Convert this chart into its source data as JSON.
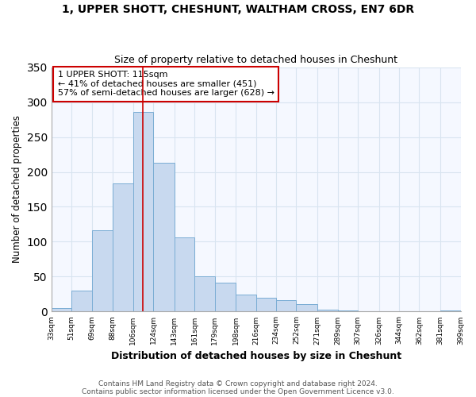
{
  "title": "1, UPPER SHOTT, CHESHUNT, WALTHAM CROSS, EN7 6DR",
  "subtitle": "Size of property relative to detached houses in Cheshunt",
  "xlabel": "Distribution of detached houses by size in Cheshunt",
  "ylabel": "Number of detached properties",
  "bar_color": "#c8d9ef",
  "bar_edge_color": "#7aadd4",
  "background_color": "#ffffff",
  "plot_bg_color": "#f5f8ff",
  "grid_color": "#d8e4f0",
  "vline_x": 115,
  "vline_color": "#cc0000",
  "annotation_title": "1 UPPER SHOTT: 115sqm",
  "annotation_line1": "← 41% of detached houses are smaller (451)",
  "annotation_line2": "57% of semi-detached houses are larger (628) →",
  "bin_edges": [
    33,
    51,
    69,
    88,
    106,
    124,
    143,
    161,
    179,
    198,
    216,
    234,
    252,
    271,
    289,
    307,
    326,
    344,
    362,
    381,
    399
  ],
  "bin_heights": [
    5,
    30,
    116,
    183,
    286,
    213,
    106,
    51,
    41,
    24,
    20,
    16,
    11,
    3,
    2,
    1,
    0,
    0,
    0,
    2
  ],
  "xlim_left": 33,
  "xlim_right": 399,
  "ylim_top": 350,
  "yticks": [
    0,
    50,
    100,
    150,
    200,
    250,
    300,
    350
  ],
  "tick_labels": [
    "33sqm",
    "51sqm",
    "69sqm",
    "88sqm",
    "106sqm",
    "124sqm",
    "143sqm",
    "161sqm",
    "179sqm",
    "198sqm",
    "216sqm",
    "234sqm",
    "252sqm",
    "271sqm",
    "289sqm",
    "307sqm",
    "326sqm",
    "344sqm",
    "362sqm",
    "381sqm",
    "399sqm"
  ],
  "footnote1": "Contains HM Land Registry data © Crown copyright and database right 2024.",
  "footnote2": "Contains public sector information licensed under the Open Government Licence v3.0."
}
